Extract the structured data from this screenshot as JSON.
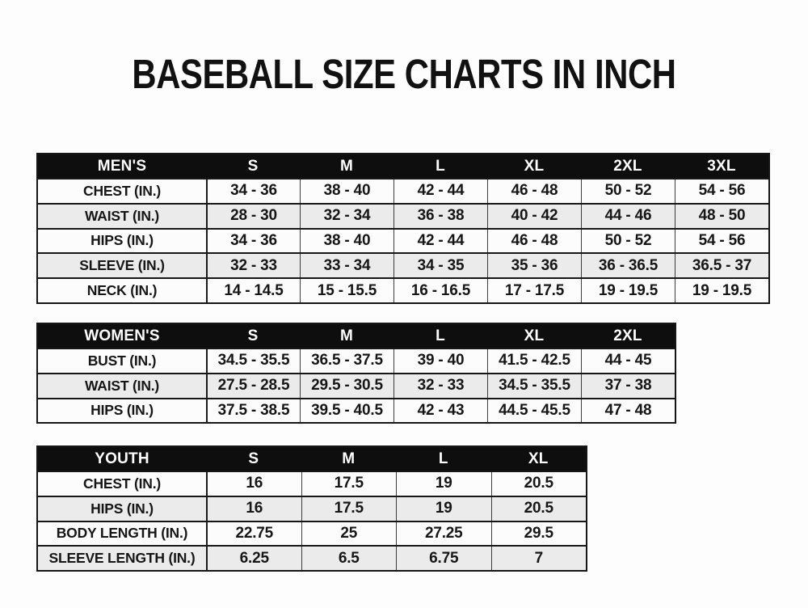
{
  "page": {
    "title": "BASEBALL SIZE CHARTS IN INCH"
  },
  "colors": {
    "header_bg": "#0e0e0e",
    "header_text": "#ffffff",
    "row_bg": "#fcfcfc",
    "row_alt_bg": "#ebebeb",
    "border": "#161616",
    "text": "#161616",
    "page_bg": "#fdfdfd"
  },
  "chart_data": [
    {
      "type": "table",
      "name": "mens-sizes",
      "unit": "inch",
      "header": [
        "MEN'S",
        "S",
        "M",
        "L",
        "XL",
        "2XL",
        "3XL"
      ],
      "rows": [
        [
          "CHEST (IN.)",
          "34 - 36",
          "38 - 40",
          "42 - 44",
          "46 - 48",
          "50 - 52",
          "54 - 56"
        ],
        [
          "WAIST (IN.)",
          "28 - 30",
          "32 - 34",
          "36 - 38",
          "40 - 42",
          "44 - 46",
          "48 - 50"
        ],
        [
          "HIPS (IN.)",
          "34 - 36",
          "38 - 40",
          "42 - 44",
          "46 - 48",
          "50 - 52",
          "54 - 56"
        ],
        [
          "SLEEVE (IN.)",
          "32 - 33",
          "33 - 34",
          "34 - 35",
          "35 - 36",
          "36 - 36.5",
          "36.5 - 37"
        ],
        [
          "NECK (IN.)",
          "14 - 14.5",
          "15 - 15.5",
          "16 - 16.5",
          "17 - 17.5",
          "19 - 19.5",
          "19 - 19.5"
        ]
      ]
    },
    {
      "type": "table",
      "name": "womens-sizes",
      "unit": "inch",
      "header": [
        "WOMEN'S",
        "S",
        "M",
        "L",
        "XL",
        "2XL"
      ],
      "rows": [
        [
          "BUST (IN.)",
          "34.5 - 35.5",
          "36.5 - 37.5",
          "39 - 40",
          "41.5 - 42.5",
          "44 - 45"
        ],
        [
          "WAIST (IN.)",
          "27.5 - 28.5",
          "29.5 - 30.5",
          "32 - 33",
          "34.5 - 35.5",
          "37 - 38"
        ],
        [
          "HIPS (IN.)",
          "37.5 - 38.5",
          "39.5 - 40.5",
          "42 - 43",
          "44.5 - 45.5",
          "47 - 48"
        ]
      ]
    },
    {
      "type": "table",
      "name": "youth-sizes",
      "unit": "inch",
      "header": [
        "YOUTH",
        "S",
        "M",
        "L",
        "XL"
      ],
      "rows": [
        [
          "CHEST (IN.)",
          "16",
          "17.5",
          "19",
          "20.5"
        ],
        [
          "HIPS (IN.)",
          "16",
          "17.5",
          "19",
          "20.5"
        ],
        [
          "BODY LENGTH (IN.)",
          "22.75",
          "25",
          "27.25",
          "29.5"
        ],
        [
          "SLEEVE LENGTH (IN.)",
          "6.25",
          "6.5",
          "6.75",
          "7"
        ]
      ]
    }
  ]
}
